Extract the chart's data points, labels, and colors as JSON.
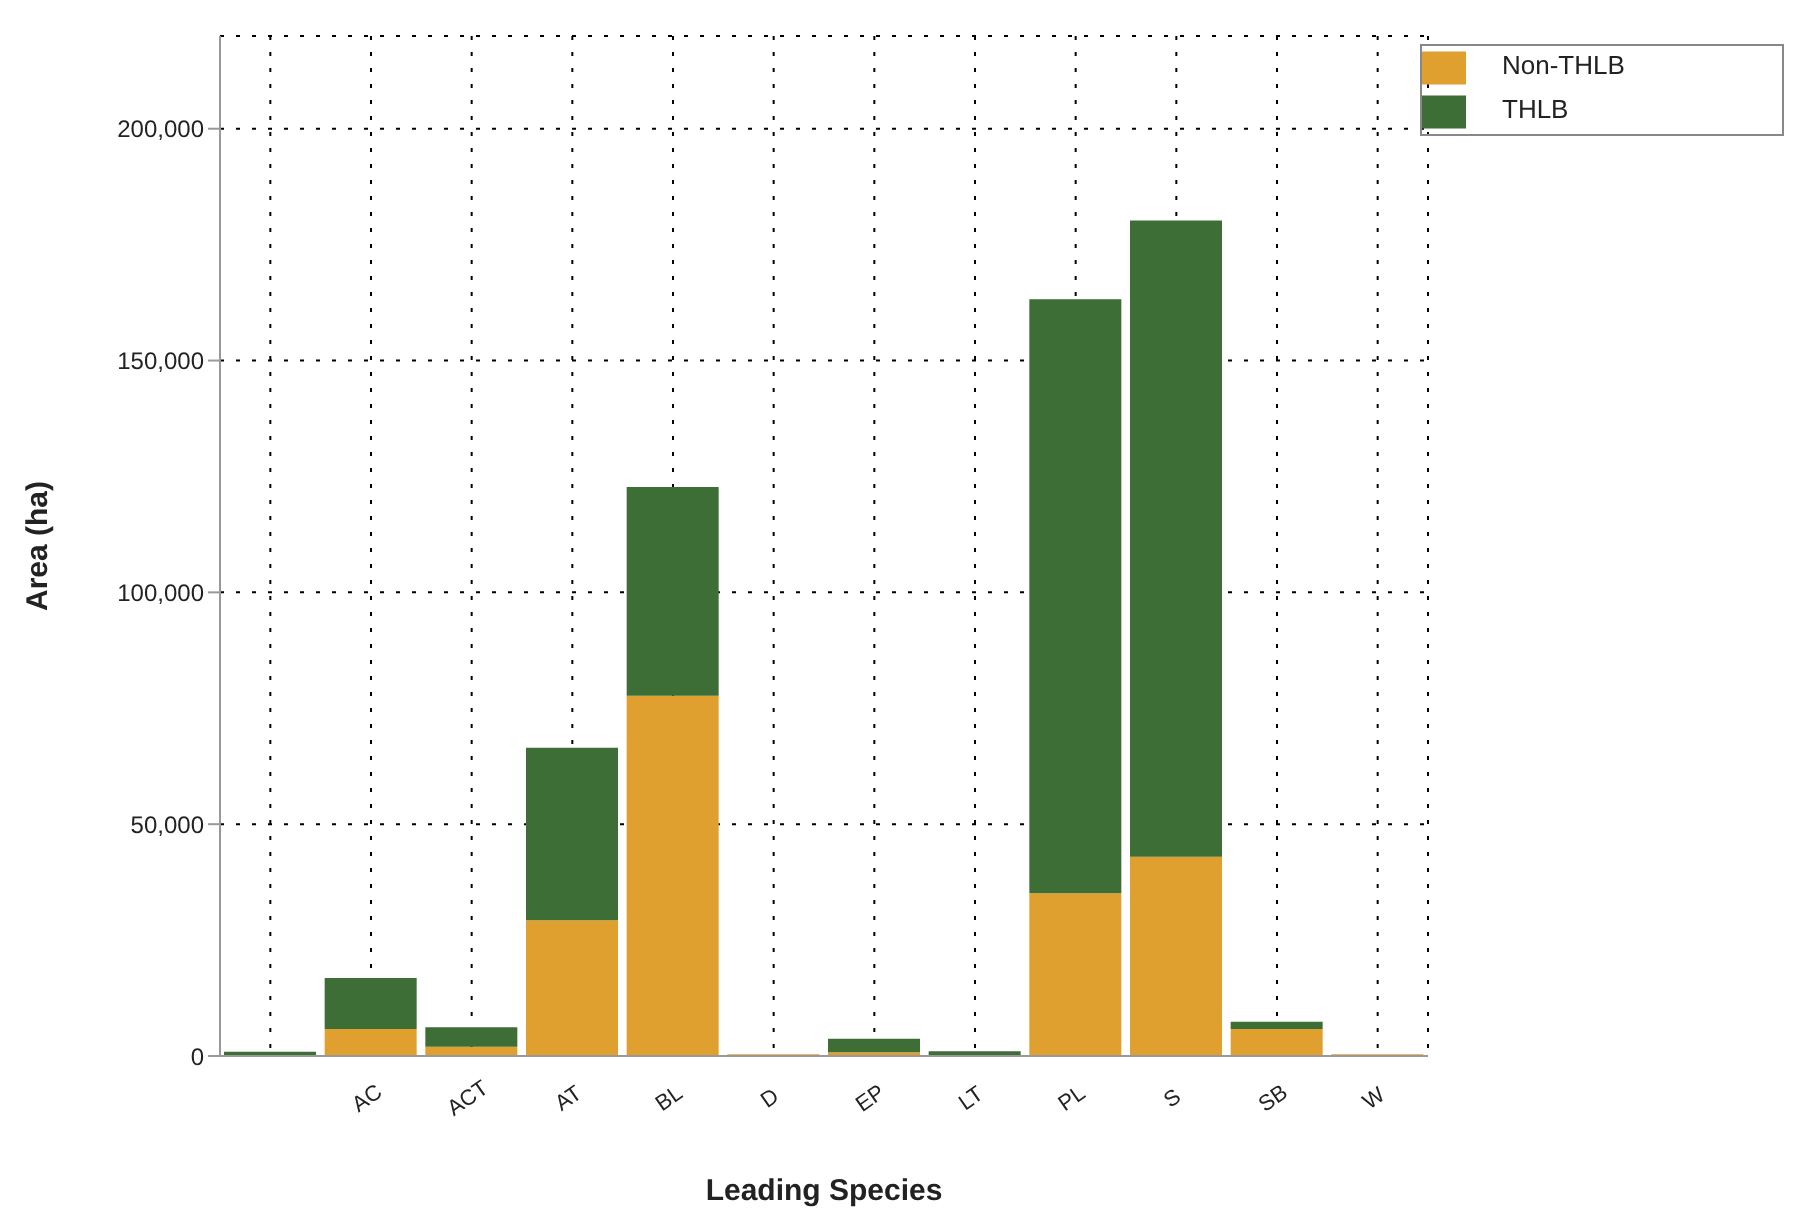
{
  "chart_data": {
    "type": "bar",
    "stacked": true,
    "xlabel": "Leading Species",
    "ylabel": "Area (ha)",
    "categories": [
      null,
      "AC",
      "ACT",
      "AT",
      "BL",
      "D",
      "EP",
      "LT",
      "PL",
      "S",
      "SB",
      "W"
    ],
    "series": [
      {
        "name": "Non-THLB",
        "color": "#e0a030",
        "values": [
          null,
          5800,
          2000,
          29300,
          77700,
          400,
          800,
          null,
          35100,
          43000,
          5800,
          400
        ]
      },
      {
        "name": "THLB",
        "color": "#3d6e35",
        "values": [
          900,
          11000,
          4200,
          37200,
          45000,
          0,
          2900,
          1000,
          128100,
          137200,
          1600,
          0
        ]
      }
    ],
    "ylim": [
      0,
      220000
    ],
    "yticks": [
      0,
      {
        "value": 50000,
        "label": "50,000"
      },
      {
        "value": 100000,
        "label": "100,000"
      },
      {
        "value": 150000,
        "label": "150,000"
      },
      {
        "value": 200000,
        "label": "200,000"
      }
    ],
    "grid": true,
    "legend": "top right"
  }
}
